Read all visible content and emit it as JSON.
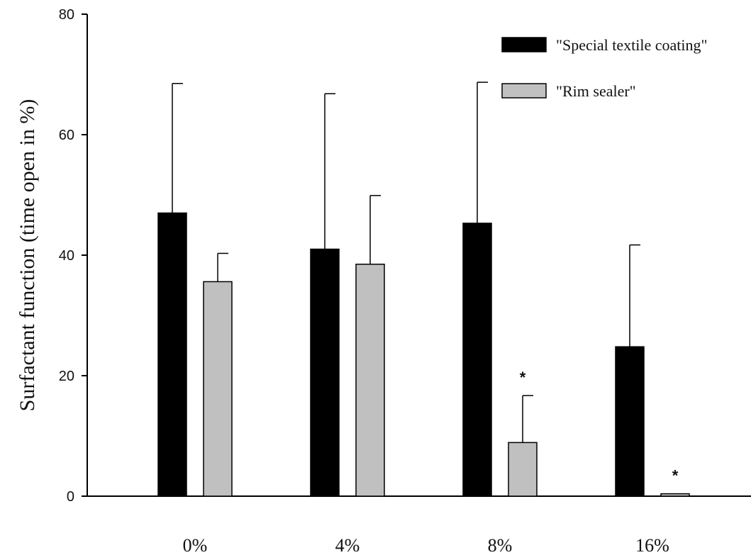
{
  "chart_data": {
    "type": "bar",
    "title": "",
    "xlabel": "",
    "ylabel": "Surfactant function (time open in %)",
    "categories": [
      "0%",
      "4%",
      "8%",
      "16%"
    ],
    "ylim": [
      0,
      80
    ],
    "yticks": [
      "0",
      "20",
      "40",
      "60",
      "80"
    ],
    "grid": false,
    "legend_position": "top-right",
    "series": [
      {
        "name": "\"Special textile coating\"",
        "color": "#000000",
        "values": [
          47,
          41,
          45.3,
          24.8
        ],
        "error_upper": [
          68.5,
          66.8,
          68.7,
          41.7
        ]
      },
      {
        "name": "\"Rim sealer\"",
        "color": "#c0c0c0",
        "values": [
          35.6,
          38.5,
          8.9,
          0.4
        ],
        "error_upper": [
          40.3,
          49.9,
          16.7,
          0.4
        ]
      }
    ],
    "annotations": [
      {
        "text": "*",
        "category": "8%",
        "series": 1
      },
      {
        "text": "*",
        "category": "16%",
        "series": 1
      }
    ]
  }
}
